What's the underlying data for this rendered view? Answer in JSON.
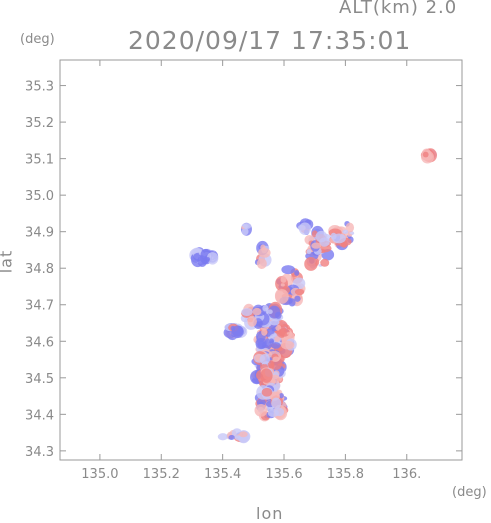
{
  "header": {
    "title": "2020/09/17 17:35:01",
    "subtitle": "ALT(km) 2.0"
  },
  "axes": {
    "xlabel": "lon",
    "ylabel": "lat",
    "xunit": "(deg)",
    "yunit": "(deg)"
  },
  "chart_data": {
    "type": "heatmap",
    "title": "2020/09/17 17:35:01",
    "subtitle": "ALT(km) 2.0",
    "xlabel": "lon",
    "ylabel": "lat",
    "x_unit": "(deg)",
    "y_unit": "(deg)",
    "xlim": [
      134.87,
      136.18
    ],
    "ylim": [
      34.275,
      35.37
    ],
    "x_ticks": [
      135.0,
      135.2,
      135.4,
      135.6,
      135.8,
      136.0
    ],
    "x_tick_labels": [
      "135.0",
      "135.2",
      "135.4",
      "135.6",
      "135.8",
      "136."
    ],
    "y_ticks": [
      34.3,
      34.4,
      34.5,
      34.6,
      34.7,
      34.8,
      34.9,
      35.0,
      35.1,
      35.2,
      35.3
    ],
    "y_tick_labels": [
      "34.3",
      "34.4",
      "34.5",
      "34.6",
      "34.7",
      "34.8",
      "34.9",
      "35.0",
      "35.1",
      "35.2",
      "35.3"
    ],
    "grid": false,
    "colors": {
      "positive": "#f08080",
      "negative": "#7b7bf0",
      "neutral": "#c8c8f8",
      "frame": "#9a9a9a"
    },
    "clusters": [
      {
        "lon": 135.57,
        "lat": 34.6,
        "rx": 0.055,
        "ry": 0.05,
        "n": 160,
        "p": 0.5
      },
      {
        "lon": 135.55,
        "lat": 34.52,
        "rx": 0.045,
        "ry": 0.05,
        "n": 110,
        "p": 0.55
      },
      {
        "lon": 135.56,
        "lat": 34.43,
        "rx": 0.04,
        "ry": 0.045,
        "n": 60,
        "p": 0.4
      },
      {
        "lon": 135.53,
        "lat": 34.67,
        "rx": 0.06,
        "ry": 0.025,
        "n": 70,
        "p": 0.35
      },
      {
        "lon": 135.44,
        "lat": 34.63,
        "rx": 0.02,
        "ry": 0.015,
        "n": 18,
        "p": 0.3
      },
      {
        "lon": 135.62,
        "lat": 34.75,
        "rx": 0.035,
        "ry": 0.05,
        "n": 35,
        "p": 0.45
      },
      {
        "lon": 135.71,
        "lat": 34.85,
        "rx": 0.035,
        "ry": 0.05,
        "n": 35,
        "p": 0.5
      },
      {
        "lon": 135.79,
        "lat": 34.89,
        "rx": 0.03,
        "ry": 0.04,
        "n": 30,
        "p": 0.6
      },
      {
        "lon": 135.53,
        "lat": 34.83,
        "rx": 0.02,
        "ry": 0.03,
        "n": 10,
        "p": 0.3
      },
      {
        "lon": 135.34,
        "lat": 34.83,
        "rx": 0.035,
        "ry": 0.013,
        "n": 40,
        "p": 0.05
      },
      {
        "lon": 135.47,
        "lat": 34.91,
        "rx": 0.01,
        "ry": 0.01,
        "n": 6,
        "p": 0.2
      },
      {
        "lon": 135.44,
        "lat": 34.34,
        "rx": 0.04,
        "ry": 0.008,
        "n": 14,
        "p": 0.4
      },
      {
        "lon": 135.67,
        "lat": 34.91,
        "rx": 0.015,
        "ry": 0.015,
        "n": 8,
        "p": 0.3
      },
      {
        "lon": 136.07,
        "lat": 35.11,
        "rx": 0.01,
        "ry": 0.008,
        "n": 10,
        "p": 0.9
      }
    ]
  }
}
